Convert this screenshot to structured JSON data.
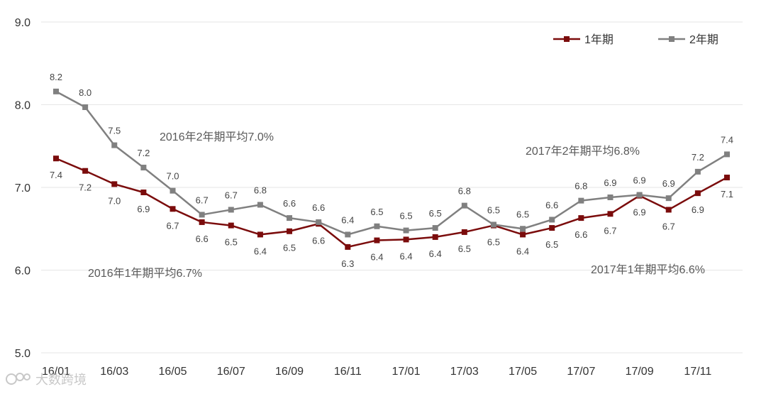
{
  "chart_data": {
    "type": "line",
    "title": "",
    "xlabel": "",
    "ylabel": "",
    "ylim": [
      5.0,
      9.0
    ],
    "yticks": [
      "5.0",
      "6.0",
      "7.0",
      "8.0",
      "9.0"
    ],
    "grid": true,
    "legend_position": "top-right",
    "x": [
      "16/01",
      "16/02",
      "16/03",
      "16/04",
      "16/05",
      "16/06",
      "16/07",
      "16/08",
      "16/09",
      "16/10",
      "16/11",
      "16/12",
      "17/01",
      "17/02",
      "17/03",
      "17/04",
      "17/05",
      "17/06",
      "17/07",
      "17/08",
      "17/09",
      "17/10",
      "17/11",
      "17/12"
    ],
    "xtick_labels": [
      "16/01",
      "16/03",
      "16/05",
      "16/07",
      "16/09",
      "16/11",
      "17/01",
      "17/03",
      "17/05",
      "17/07",
      "17/09",
      "17/11"
    ],
    "series": [
      {
        "name": "1年期",
        "color": "#7b0c0c",
        "values": [
          7.35,
          7.2,
          7.04,
          6.94,
          6.74,
          6.58,
          6.54,
          6.43,
          6.47,
          6.56,
          6.28,
          6.36,
          6.37,
          6.4,
          6.46,
          6.54,
          6.43,
          6.51,
          6.63,
          6.68,
          6.9,
          6.73,
          6.93,
          7.12
        ],
        "labels": [
          "7.4",
          "7.2",
          "7.0",
          "6.9",
          "6.7",
          "6.6",
          "6.5",
          "6.4",
          "6.5",
          "6.6",
          "6.3",
          "6.4",
          "6.4",
          "6.4",
          "6.5",
          "6.5",
          "6.4",
          "6.5",
          "6.6",
          "6.7",
          "6.9",
          "6.7",
          "6.9",
          "7.1"
        ]
      },
      {
        "name": "2年期",
        "color": "#808080",
        "values": [
          8.16,
          7.97,
          7.51,
          7.24,
          6.96,
          6.67,
          6.73,
          6.79,
          6.63,
          6.58,
          6.43,
          6.53,
          6.48,
          6.51,
          6.78,
          6.55,
          6.5,
          6.61,
          6.84,
          6.88,
          6.91,
          6.87,
          7.19,
          7.4
        ],
        "labels": [
          "8.2",
          "8.0",
          "7.5",
          "7.2",
          "7.0",
          "6.7",
          "6.7",
          "6.8",
          "6.6",
          "6.6",
          "6.4",
          "6.5",
          "6.5",
          "6.5",
          "6.8",
          "6.5",
          "6.5",
          "6.6",
          "6.8",
          "6.9",
          "6.9",
          "6.9",
          "7.2",
          "7.4"
        ]
      }
    ],
    "annotations": [
      {
        "text": "2016年2年期平均7.0%"
      },
      {
        "text": "2017年2年期平均6.8%"
      },
      {
        "text": "2016年1年期平均6.7%"
      },
      {
        "text": "2017年1年期平均6.6%"
      }
    ]
  },
  "watermark": "大数跨境"
}
